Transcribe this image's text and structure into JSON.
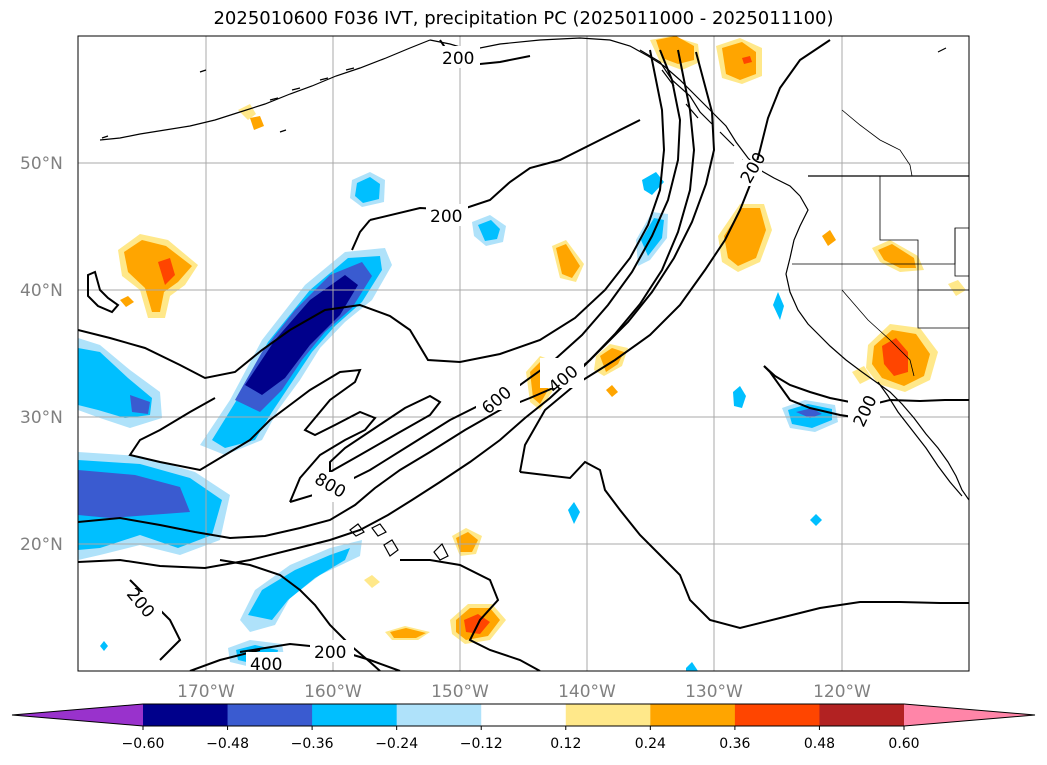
{
  "title": "2025010600 F036 IVT, precipitation PC (2025011000 - 2025011100)",
  "lat_labels": [
    "50°N",
    "40°N",
    "30°N",
    "20°N"
  ],
  "lon_labels": [
    "170°W",
    "160°W",
    "150°W",
    "140°W",
    "130°W",
    "120°W"
  ],
  "contour_levels": [
    "200",
    "400",
    "600",
    "800"
  ],
  "contour_label_instances": [
    "200",
    "200",
    "200",
    "200",
    "200",
    "200",
    "400",
    "400",
    "600",
    "800"
  ],
  "colorbar": {
    "ticks": [
      "−0.60",
      "−0.48",
      "−0.36",
      "−0.24",
      "−0.12",
      "0.12",
      "0.24",
      "0.36",
      "0.48",
      "0.60"
    ],
    "colors": [
      "#9932cc",
      "#00008b",
      "#3a5bd0",
      "#00bfff",
      "#afe2fa",
      "#ffffff",
      "#ffe88a",
      "#ffa500",
      "#ff4500",
      "#b22222",
      "#ff85a8"
    ]
  },
  "colors": {
    "land_lines": "#000000",
    "grid": "#a9a9a9"
  }
}
